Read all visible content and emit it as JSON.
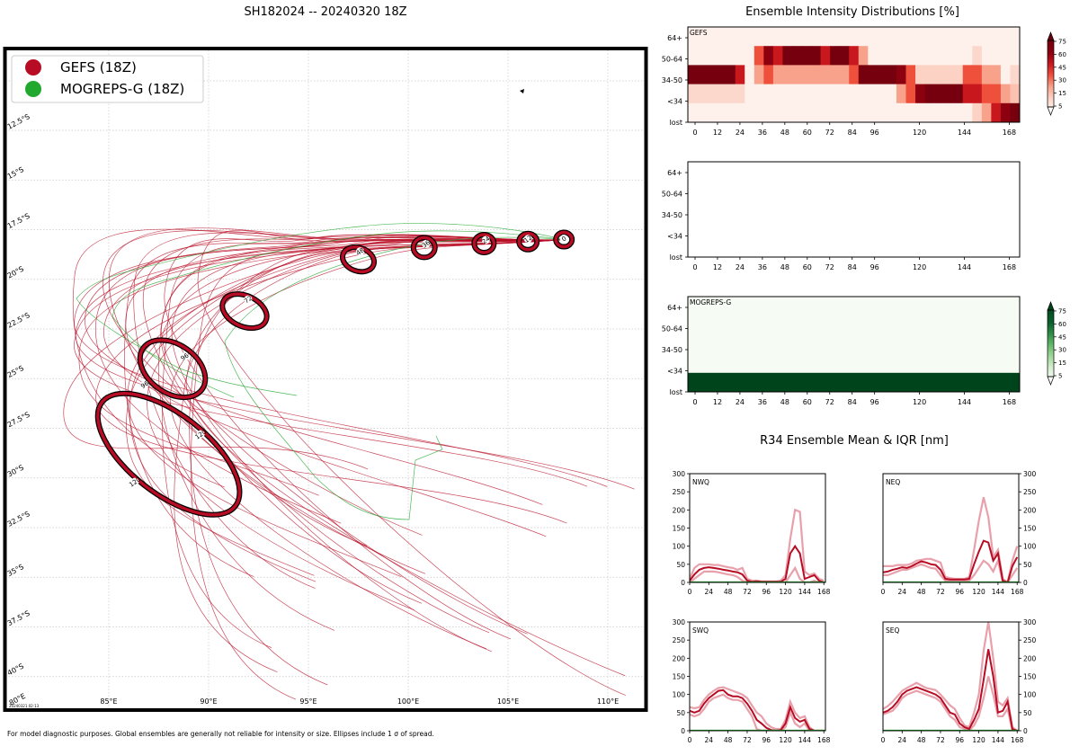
{
  "figure": {
    "map_title": "SH182024 -- 20240320 18Z",
    "intensity_title": "Ensemble Intensity Distributions [%]",
    "r34_title": "R34 Ensemble Mean & IQR [nm]",
    "footer": "For model diagnostic purposes. Global ensembles are generally not reliable for intensity or size. Ellipses include 1 σ of spread.",
    "timestamp": "20240321 02:13"
  },
  "colors": {
    "gefs": "#b80c24",
    "mogreps": "#21a82e",
    "gefs_light": "#e8a0ab"
  },
  "chart_data": [
    {
      "type": "scatter",
      "title": "SH182024 -- 20240320 18Z",
      "lon_ticks": [
        "85°E",
        "90°E",
        "95°E",
        "100°E",
        "105°E",
        "110°E"
      ],
      "lat_ticks": [
        "12.5°S",
        "15°S",
        "17.5°S",
        "20°S",
        "22.5°S",
        "25°S",
        "27.5°S",
        "30°S",
        "32.5°S",
        "35°S",
        "37.5°S",
        "40°S"
      ],
      "corner_label": "80°E",
      "legend": [
        {
          "name": "GEFS (18Z)",
          "color": "#b80c24"
        },
        {
          "name": "MOGREPS-G (18Z)",
          "color": "#21a82e"
        }
      ],
      "mean_track": [
        {
          "hour": "0",
          "lon": 107.8,
          "lat": -18.0
        },
        {
          "hour": "12",
          "lon": 106.0,
          "lat": -18.1
        },
        {
          "hour": "24",
          "lon": 103.8,
          "lat": -18.2
        },
        {
          "hour": "36",
          "lon": 100.8,
          "lat": -18.4
        },
        {
          "hour": "48",
          "lon": 97.5,
          "lat": -19.0
        },
        {
          "hour": "72",
          "lon": 91.8,
          "lat": -21.6
        },
        {
          "hour": "96",
          "lon": 88.5,
          "lat": -23.8
        },
        {
          "hour": "96",
          "lon": 88.0,
          "lat": -25.3
        },
        {
          "hour": "120",
          "lon": 89.0,
          "lat": -27.8
        },
        {
          "hour": "120",
          "lon": 86.8,
          "lat": -29.8
        }
      ]
    },
    {
      "type": "heatmap",
      "name": "GEFS",
      "x_ticks": [
        "0",
        "12",
        "24",
        "36",
        "48",
        "60",
        "72",
        "84",
        "96",
        "120",
        "144",
        "168"
      ],
      "y_ticks": [
        "64+",
        "50-64",
        "34-50",
        "<34",
        "lost"
      ],
      "colorbar_ticks": [
        "75",
        "60",
        "45",
        "30",
        "15",
        "5"
      ],
      "rows": [
        [
          0,
          0,
          0,
          0,
          0,
          0,
          0,
          0,
          0,
          0,
          0,
          0,
          0,
          0,
          0,
          0,
          0,
          0,
          0,
          0,
          0,
          0,
          0,
          0,
          0,
          0,
          0,
          0,
          0,
          0,
          0,
          0,
          0,
          0,
          0
        ],
        [
          0,
          0,
          0,
          0,
          0,
          0,
          0,
          45,
          75,
          60,
          90,
          90,
          90,
          90,
          60,
          90,
          90,
          60,
          30,
          0,
          0,
          0,
          0,
          0,
          0,
          0,
          0,
          0,
          0,
          0,
          12,
          0,
          0,
          0,
          0
        ],
        [
          90,
          90,
          90,
          90,
          90,
          60,
          0,
          30,
          45,
          30,
          30,
          30,
          30,
          30,
          30,
          30,
          30,
          45,
          90,
          90,
          90,
          90,
          75,
          45,
          15,
          15,
          15,
          15,
          15,
          45,
          45,
          30,
          30,
          0,
          12
        ],
        [
          12,
          12,
          12,
          12,
          12,
          12,
          0,
          0,
          0,
          0,
          0,
          0,
          0,
          0,
          0,
          0,
          0,
          0,
          0,
          0,
          0,
          0,
          30,
          45,
          75,
          90,
          90,
          90,
          90,
          60,
          60,
          45,
          45,
          30,
          20
        ],
        [
          0,
          0,
          0,
          0,
          0,
          0,
          0,
          0,
          0,
          0,
          0,
          0,
          0,
          0,
          0,
          0,
          0,
          0,
          0,
          0,
          0,
          0,
          0,
          0,
          0,
          0,
          0,
          0,
          0,
          0,
          15,
          30,
          60,
          75,
          90
        ]
      ]
    },
    {
      "type": "heatmap",
      "name": "",
      "x_ticks": [
        "0",
        "12",
        "24",
        "36",
        "48",
        "60",
        "72",
        "84",
        "96",
        "120",
        "144",
        "168"
      ],
      "y_ticks": [
        "64+",
        "50-64",
        "34-50",
        "<34",
        "lost"
      ],
      "rows": []
    },
    {
      "type": "heatmap",
      "name": "MOGREPS-G",
      "x_ticks": [
        "0",
        "12",
        "24",
        "36",
        "48",
        "60",
        "72",
        "84",
        "96",
        "120",
        "144",
        "168"
      ],
      "y_ticks": [
        "64+",
        "50-64",
        "34-50",
        "<34",
        "lost"
      ],
      "colorbar_ticks": [
        "75",
        "60",
        "45",
        "30",
        "15",
        "5"
      ],
      "rows": [
        [
          0
        ],
        [
          0
        ],
        [
          0
        ],
        [
          0
        ],
        [
          100
        ]
      ]
    },
    {
      "type": "line",
      "title": "NWQ",
      "x": [
        0,
        6,
        12,
        18,
        24,
        30,
        36,
        42,
        48,
        54,
        60,
        66,
        72,
        78,
        84,
        90,
        96,
        102,
        108,
        114,
        120,
        126,
        132,
        138,
        144,
        150,
        156,
        162,
        168
      ],
      "xlim": [
        0,
        170
      ],
      "ylim": [
        0,
        300
      ],
      "x_ticks": [
        "0",
        "24",
        "48",
        "72",
        "96",
        "120",
        "144",
        "168"
      ],
      "y_ticks": [
        "0",
        "50",
        "100",
        "150",
        "200",
        "250",
        "300"
      ],
      "series": [
        {
          "name": "mean",
          "values": [
            5,
            22,
            35,
            40,
            42,
            40,
            38,
            35,
            33,
            30,
            28,
            22,
            5,
            2,
            3,
            2,
            2,
            2,
            2,
            2,
            10,
            80,
            100,
            80,
            10,
            15,
            20,
            5,
            0
          ]
        },
        {
          "name": "q75",
          "values": [
            10,
            40,
            50,
            50,
            50,
            48,
            48,
            45,
            42,
            40,
            35,
            40,
            10,
            5,
            5,
            3,
            3,
            3,
            3,
            5,
            20,
            120,
            200,
            195,
            30,
            20,
            25,
            10,
            5
          ]
        },
        {
          "name": "q25",
          "values": [
            0,
            10,
            20,
            30,
            30,
            30,
            28,
            25,
            22,
            20,
            15,
            5,
            0,
            0,
            0,
            0,
            0,
            0,
            0,
            0,
            0,
            20,
            40,
            10,
            0,
            0,
            5,
            0,
            0
          ]
        }
      ]
    },
    {
      "type": "line",
      "title": "NEQ",
      "x": [
        0,
        6,
        12,
        18,
        24,
        30,
        36,
        42,
        48,
        54,
        60,
        66,
        72,
        78,
        84,
        90,
        96,
        102,
        108,
        114,
        120,
        126,
        132,
        138,
        144,
        150,
        156,
        162,
        168
      ],
      "xlim": [
        0,
        170
      ],
      "ylim": [
        0,
        300
      ],
      "x_ticks": [
        "0",
        "24",
        "48",
        "72",
        "96",
        "120",
        "144",
        "168"
      ],
      "y_ticks": [
        "0",
        "50",
        "100",
        "150",
        "200",
        "250",
        "300"
      ],
      "series": [
        {
          "name": "mean",
          "values": [
            28,
            30,
            35,
            38,
            42,
            40,
            45,
            52,
            58,
            55,
            50,
            48,
            35,
            10,
            8,
            8,
            8,
            8,
            10,
            50,
            85,
            115,
            110,
            60,
            80,
            5,
            0,
            45,
            70
          ]
        },
        {
          "name": "q75",
          "values": [
            45,
            45,
            45,
            48,
            48,
            48,
            52,
            60,
            62,
            65,
            65,
            60,
            55,
            15,
            12,
            10,
            10,
            10,
            15,
            90,
            170,
            235,
            180,
            70,
            90,
            10,
            0,
            60,
            100
          ]
        },
        {
          "name": "q25",
          "values": [
            20,
            20,
            25,
            30,
            35,
            35,
            40,
            45,
            50,
            45,
            40,
            38,
            20,
            5,
            5,
            5,
            5,
            5,
            5,
            20,
            40,
            60,
            50,
            30,
            60,
            0,
            0,
            20,
            40
          ]
        }
      ]
    },
    {
      "type": "line",
      "title": "SWQ",
      "x": [
        0,
        6,
        12,
        18,
        24,
        30,
        36,
        42,
        48,
        54,
        60,
        66,
        72,
        78,
        84,
        90,
        96,
        102,
        108,
        114,
        120,
        126,
        132,
        138,
        144,
        150,
        156,
        162,
        168
      ],
      "xlim": [
        0,
        170
      ],
      "ylim": [
        0,
        300
      ],
      "x_ticks": [
        "0",
        "24",
        "48",
        "72",
        "96",
        "120",
        "144",
        "168"
      ],
      "y_ticks": [
        "0",
        "50",
        "100",
        "150",
        "200",
        "250",
        "300"
      ],
      "series": [
        {
          "name": "mean",
          "values": [
            55,
            50,
            55,
            75,
            90,
            100,
            110,
            112,
            100,
            95,
            95,
            90,
            75,
            55,
            30,
            20,
            8,
            2,
            0,
            2,
            20,
            65,
            35,
            25,
            30,
            5,
            0,
            0,
            0
          ]
        },
        {
          "name": "q75",
          "values": [
            65,
            62,
            65,
            85,
            100,
            110,
            118,
            120,
            115,
            110,
            105,
            100,
            90,
            70,
            50,
            40,
            20,
            10,
            5,
            5,
            30,
            80,
            50,
            35,
            40,
            10,
            0,
            0,
            0
          ]
        },
        {
          "name": "q25",
          "values": [
            45,
            40,
            45,
            60,
            80,
            90,
            95,
            100,
            90,
            85,
            85,
            80,
            60,
            40,
            5,
            0,
            0,
            0,
            0,
            0,
            10,
            50,
            20,
            10,
            20,
            0,
            0,
            0,
            0
          ]
        }
      ]
    },
    {
      "type": "line",
      "title": "SEQ",
      "x": [
        0,
        6,
        12,
        18,
        24,
        30,
        36,
        42,
        48,
        54,
        60,
        66,
        72,
        78,
        84,
        90,
        96,
        102,
        108,
        114,
        120,
        126,
        132,
        138,
        144,
        150,
        156,
        162,
        168
      ],
      "xlim": [
        0,
        170
      ],
      "ylim": [
        0,
        300
      ],
      "x_ticks": [
        "0",
        "24",
        "48",
        "72",
        "96",
        "120",
        "144",
        "168"
      ],
      "y_ticks": [
        "0",
        "50",
        "100",
        "150",
        "200",
        "250",
        "300"
      ],
      "series": [
        {
          "name": "mean",
          "values": [
            50,
            55,
            65,
            80,
            100,
            110,
            115,
            120,
            115,
            110,
            105,
            100,
            90,
            70,
            50,
            45,
            20,
            10,
            5,
            30,
            60,
            140,
            225,
            150,
            50,
            55,
            80,
            5,
            0
          ]
        },
        {
          "name": "q75",
          "values": [
            60,
            68,
            80,
            95,
            110,
            118,
            125,
            132,
            125,
            118,
            115,
            112,
            100,
            85,
            70,
            60,
            35,
            15,
            10,
            50,
            100,
            220,
            300,
            200,
            80,
            70,
            90,
            10,
            0
          ]
        },
        {
          "name": "q25",
          "values": [
            45,
            50,
            55,
            70,
            90,
            100,
            105,
            110,
            105,
            100,
            95,
            90,
            80,
            60,
            40,
            30,
            10,
            5,
            0,
            15,
            40,
            90,
            150,
            100,
            40,
            40,
            60,
            0,
            0
          ]
        }
      ]
    }
  ]
}
